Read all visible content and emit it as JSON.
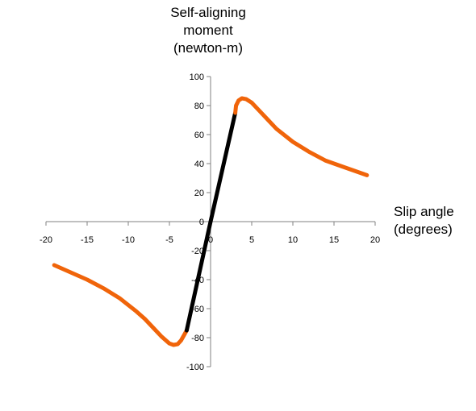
{
  "chart_data": {
    "type": "line",
    "ylabel_lines": [
      "Self-aligning",
      "moment",
      "(newton-m)"
    ],
    "xlabel_lines": [
      "Slip angle",
      "(degrees)"
    ],
    "xlim": [
      -20,
      20
    ],
    "ylim": [
      -100,
      100
    ],
    "x_ticks": [
      -20,
      -15,
      -10,
      -5,
      0,
      5,
      10,
      15,
      20
    ],
    "x_tick_labels": [
      "-20",
      "-15",
      "-10",
      "-5",
      "0",
      "5",
      "10",
      "15",
      "20"
    ],
    "y_ticks": [
      -100,
      -80,
      -60,
      -40,
      -20,
      0,
      20,
      40,
      60,
      80,
      100
    ],
    "y_tick_labels": [
      "-100",
      "-80",
      "-60",
      "-40",
      "-20",
      "0",
      "20",
      "40",
      "60",
      "80",
      "100"
    ],
    "grid": false,
    "legend": "none",
    "series": [
      {
        "color": "#f0640a",
        "x": [
          -19,
          -17,
          -15,
          -13,
          -11,
          -9,
          -8,
          -7,
          -6,
          -5,
          -4.5,
          -4,
          -3.6,
          -3.2,
          -2.9
        ],
        "y": [
          -30,
          -35,
          -40,
          -46,
          -53,
          -62,
          -67,
          -73,
          -79,
          -84,
          -85,
          -84.5,
          -82,
          -78,
          -75
        ]
      },
      {
        "color": "#000000",
        "x": [
          -2.9,
          0,
          3
        ],
        "y": [
          -75,
          0,
          75
        ]
      },
      {
        "color": "#f0640a",
        "x": [
          3,
          3.1,
          3.4,
          3.8,
          4.3,
          5,
          6,
          7,
          8,
          10,
          12,
          14,
          16,
          19
        ],
        "y": [
          75,
          80,
          83.5,
          85,
          84.5,
          82,
          76,
          70,
          64,
          55,
          48,
          42,
          38,
          32
        ]
      }
    ]
  }
}
